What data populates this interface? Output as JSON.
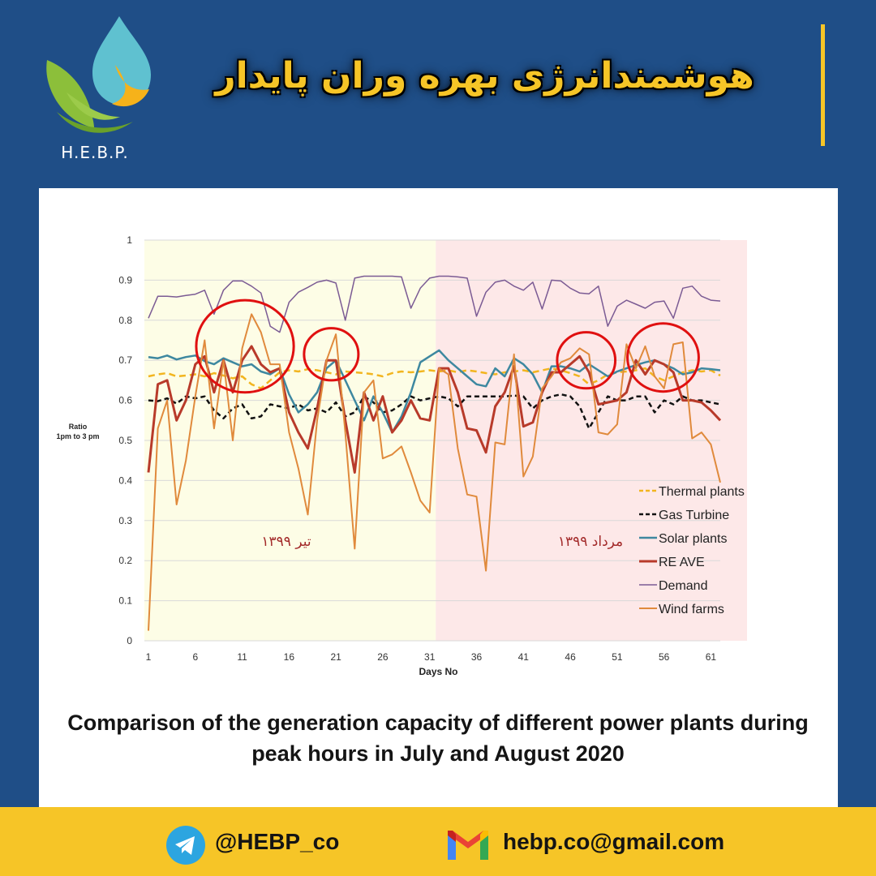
{
  "brand": {
    "logo_text": "H.E.B.P.",
    "headline": "هوشمندانرژی بهره وران پایدار"
  },
  "caption": "Comparison of the generation capacity of different power plants during peak hours in July and August 2020",
  "footer": {
    "telegram": "@HEBP_co",
    "email": "hebp.co@gmail.com"
  },
  "colors": {
    "background": "#1f4e87",
    "accent": "#f6c527",
    "july_band": "#fdfde6",
    "august_band": "#fde8e8",
    "highlight_circle": "#e01010"
  },
  "icons": {
    "telegram": "telegram-icon",
    "email": "gmail-icon",
    "logo": "water-drop-leaf-logo"
  },
  "chart_data": {
    "type": "line",
    "ylabel": "Ratio\n1pm to 3 pm",
    "xlabel": "Days No",
    "ylim": [
      0,
      1
    ],
    "xlim": [
      1,
      62
    ],
    "yticks": [
      0,
      0.1,
      0.2,
      0.3,
      0.4,
      0.5,
      0.6,
      0.7,
      0.8,
      0.9,
      1
    ],
    "yticklabels": [
      "0",
      "0.1",
      "0.2",
      "0.3",
      "0.4",
      "0.5",
      "0.6",
      "0.7",
      "0.8",
      "0.9",
      "1"
    ],
    "xticks": [
      1,
      6,
      11,
      16,
      21,
      26,
      31,
      36,
      41,
      46,
      51,
      56,
      61
    ],
    "xticklabels": [
      "1",
      "6",
      "11",
      "16",
      "21",
      "26",
      "31",
      "36",
      "41",
      "46",
      "51",
      "56",
      "61"
    ],
    "grid": true,
    "legend_position": "right",
    "periods": [
      {
        "label": "تیر ۱۳۹۹",
        "x_start": 1,
        "x_end": 32
      },
      {
        "label": "مرداد ۱۳۹۹",
        "x_start": 32,
        "x_end": 62
      }
    ],
    "x": [
      1,
      2,
      3,
      4,
      5,
      6,
      7,
      8,
      9,
      10,
      11,
      12,
      13,
      14,
      15,
      16,
      17,
      18,
      19,
      20,
      21,
      22,
      23,
      24,
      25,
      26,
      27,
      28,
      29,
      30,
      31,
      32,
      33,
      34,
      35,
      36,
      37,
      38,
      39,
      40,
      41,
      42,
      43,
      44,
      45,
      46,
      47,
      48,
      49,
      50,
      51,
      52,
      53,
      54,
      55,
      56,
      57,
      58,
      59,
      60,
      61,
      62
    ],
    "series": [
      {
        "name": "Thermal plants",
        "color": "#f2b51f",
        "dash": "8,5",
        "width": 2.5,
        "values": [
          0.66,
          0.665,
          0.668,
          0.66,
          0.662,
          0.665,
          0.66,
          0.668,
          0.662,
          0.655,
          0.66,
          0.64,
          0.63,
          0.65,
          0.67,
          0.675,
          0.672,
          0.678,
          0.675,
          0.67,
          0.665,
          0.672,
          0.67,
          0.668,
          0.665,
          0.66,
          0.668,
          0.672,
          0.67,
          0.672,
          0.675,
          0.672,
          0.675,
          0.67,
          0.675,
          0.672,
          0.668,
          0.665,
          0.67,
          0.672,
          0.675,
          0.67,
          0.675,
          0.68,
          0.675,
          0.668,
          0.66,
          0.64,
          0.65,
          0.665,
          0.67,
          0.672,
          0.675,
          0.68,
          0.66,
          0.65,
          0.66,
          0.67,
          0.675,
          0.672,
          0.675,
          0.662
        ]
      },
      {
        "name": "Gas Turbine",
        "color": "#111111",
        "dash": "6,4",
        "width": 2.5,
        "values": [
          0.6,
          0.598,
          0.605,
          0.592,
          0.61,
          0.605,
          0.61,
          0.575,
          0.555,
          0.58,
          0.59,
          0.555,
          0.56,
          0.59,
          0.585,
          0.58,
          0.59,
          0.575,
          0.58,
          0.57,
          0.595,
          0.56,
          0.57,
          0.61,
          0.595,
          0.57,
          0.575,
          0.59,
          0.61,
          0.6,
          0.605,
          0.61,
          0.605,
          0.585,
          0.61,
          0.61,
          0.61,
          0.61,
          0.61,
          0.612,
          0.61,
          0.58,
          0.6,
          0.61,
          0.615,
          0.61,
          0.585,
          0.53,
          0.57,
          0.61,
          0.6,
          0.6,
          0.61,
          0.61,
          0.57,
          0.6,
          0.59,
          0.61,
          0.6,
          0.6,
          0.595,
          0.59
        ]
      },
      {
        "name": "Solar plants",
        "color": "#3e88a0",
        "dash": "",
        "width": 2.5,
        "values": [
          0.708,
          0.705,
          0.712,
          0.702,
          0.708,
          0.712,
          0.698,
          0.69,
          0.705,
          0.695,
          0.685,
          0.69,
          0.672,
          0.665,
          0.68,
          0.615,
          0.57,
          0.59,
          0.62,
          0.68,
          0.7,
          0.65,
          0.6,
          0.55,
          0.61,
          0.57,
          0.52,
          0.56,
          0.62,
          0.695,
          0.71,
          0.725,
          0.7,
          0.68,
          0.66,
          0.64,
          0.635,
          0.68,
          0.66,
          0.705,
          0.69,
          0.665,
          0.62,
          0.685,
          0.685,
          0.68,
          0.672,
          0.69,
          0.675,
          0.66,
          0.672,
          0.68,
          0.688,
          0.695,
          0.7,
          0.69,
          0.68,
          0.665,
          0.67,
          0.68,
          0.678,
          0.675
        ]
      },
      {
        "name": "RE AVE",
        "color": "#b83a2a",
        "dash": "",
        "width": 3,
        "values": [
          0.42,
          0.64,
          0.65,
          0.55,
          0.6,
          0.69,
          0.71,
          0.62,
          0.7,
          0.62,
          0.7,
          0.735,
          0.69,
          0.67,
          0.68,
          0.57,
          0.52,
          0.48,
          0.58,
          0.7,
          0.7,
          0.55,
          0.42,
          0.62,
          0.55,
          0.61,
          0.52,
          0.55,
          0.6,
          0.555,
          0.55,
          0.68,
          0.68,
          0.62,
          0.53,
          0.525,
          0.47,
          0.585,
          0.62,
          0.685,
          0.535,
          0.545,
          0.62,
          0.67,
          0.67,
          0.69,
          0.71,
          0.67,
          0.59,
          0.595,
          0.6,
          0.62,
          0.7,
          0.665,
          0.7,
          0.69,
          0.67,
          0.6,
          0.6,
          0.595,
          0.575,
          0.55
        ]
      },
      {
        "name": "Demand",
        "color": "#7b5b94",
        "dash": "",
        "width": 1.5,
        "values": [
          0.805,
          0.86,
          0.86,
          0.858,
          0.862,
          0.865,
          0.875,
          0.815,
          0.875,
          0.898,
          0.898,
          0.885,
          0.868,
          0.785,
          0.77,
          0.845,
          0.87,
          0.882,
          0.895,
          0.9,
          0.893,
          0.8,
          0.905,
          0.91,
          0.91,
          0.91,
          0.91,
          0.908,
          0.83,
          0.88,
          0.905,
          0.91,
          0.91,
          0.908,
          0.905,
          0.81,
          0.87,
          0.895,
          0.9,
          0.885,
          0.875,
          0.895,
          0.828,
          0.9,
          0.898,
          0.88,
          0.868,
          0.866,
          0.885,
          0.785,
          0.835,
          0.85,
          0.84,
          0.83,
          0.845,
          0.848,
          0.805,
          0.88,
          0.885,
          0.86,
          0.85,
          0.848
        ]
      },
      {
        "name": "Wind farms",
        "color": "#e08a3c",
        "dash": "",
        "width": 2,
        "values": [
          0.025,
          0.53,
          0.6,
          0.34,
          0.45,
          0.61,
          0.75,
          0.53,
          0.7,
          0.5,
          0.73,
          0.815,
          0.77,
          0.69,
          0.69,
          0.52,
          0.43,
          0.315,
          0.55,
          0.7,
          0.765,
          0.52,
          0.23,
          0.62,
          0.65,
          0.455,
          0.465,
          0.485,
          0.42,
          0.35,
          0.32,
          0.68,
          0.665,
          0.48,
          0.365,
          0.36,
          0.175,
          0.495,
          0.49,
          0.715,
          0.41,
          0.46,
          0.63,
          0.66,
          0.695,
          0.705,
          0.73,
          0.715,
          0.52,
          0.515,
          0.54,
          0.74,
          0.68,
          0.735,
          0.66,
          0.63,
          0.74,
          0.745,
          0.505,
          0.52,
          0.49,
          0.395
        ]
      }
    ],
    "highlights": [
      {
        "cx_day": 11.3,
        "cy_value": 0.735,
        "rx_days": 5.2,
        "ry_value": 0.115
      },
      {
        "cx_day": 20.5,
        "cy_value": 0.715,
        "rx_days": 2.9,
        "ry_value": 0.065
      },
      {
        "cx_day": 47.7,
        "cy_value": 0.7,
        "rx_days": 3.1,
        "ry_value": 0.07
      },
      {
        "cx_day": 55.9,
        "cy_value": 0.707,
        "rx_days": 3.8,
        "ry_value": 0.085
      }
    ]
  }
}
